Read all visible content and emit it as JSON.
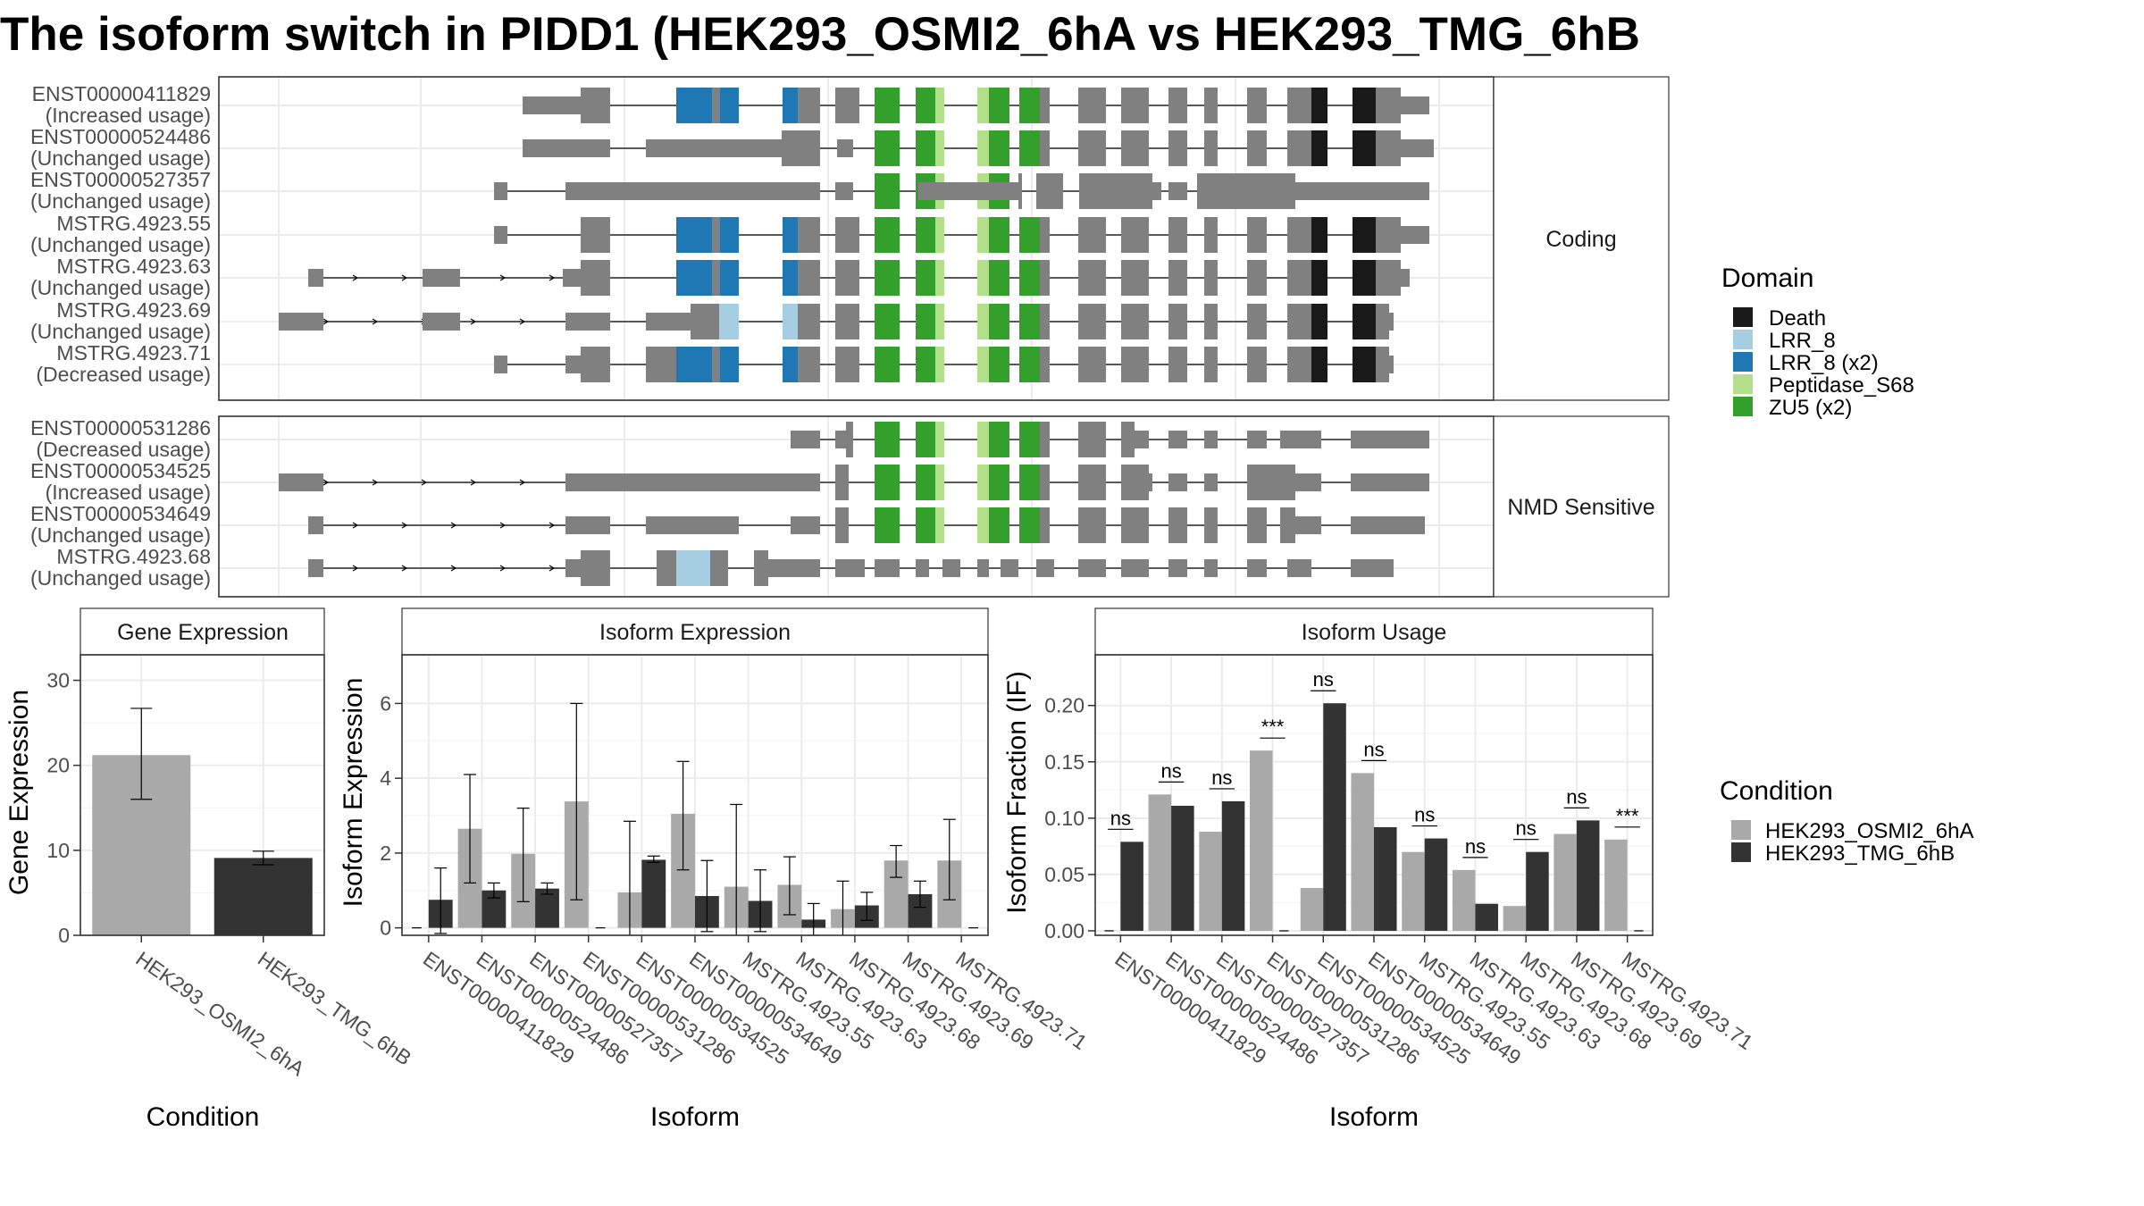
{
  "title": "The isoform switch in PIDD1 (HEK293_OSMI2_6hA vs HEK293_TMG_6hB",
  "colors": {
    "exon": "#808080",
    "Death": "#1a1a1a",
    "LRR_8": "#a6cee3",
    "LRR_8 (x2)": "#1f78b4",
    "Peptidase_S68": "#b2df8a",
    "ZU5 (x2)": "#33a02c",
    "cond1": "#a9a9a9",
    "cond2": "#333333",
    "grid": "#ebebeb",
    "strip": "#ffffff"
  },
  "structure": {
    "facets": [
      {
        "label": "Coding",
        "rows": [
          {
            "name": "ENST00000411829",
            "status": "(Increased usage)"
          },
          {
            "name": "ENST00000524486",
            "status": "(Unchanged usage)"
          },
          {
            "name": "ENST00000527357",
            "status": "(Unchanged usage)"
          },
          {
            "name": "MSTRG.4923.55",
            "status": "(Unchanged usage)"
          },
          {
            "name": "MSTRG.4923.63",
            "status": "(Unchanged usage)"
          },
          {
            "name": "MSTRG.4923.69",
            "status": "(Unchanged usage)"
          },
          {
            "name": "MSTRG.4923.71",
            "status": "(Decreased usage)"
          }
        ]
      },
      {
        "label": "NMD Sensitive",
        "rows": [
          {
            "name": "ENST00000531286",
            "status": "(Decreased usage)"
          },
          {
            "name": "ENST00000534525",
            "status": "(Increased usage)"
          },
          {
            "name": "ENST00000534649",
            "status": "(Unchanged usage)"
          },
          {
            "name": "MSTRG.4923.68",
            "status": "(Unchanged usage)"
          }
        ]
      }
    ]
  },
  "legend_domain": {
    "title": "Domain",
    "items": [
      "Death",
      "LRR_8",
      "LRR_8 (x2)",
      "Peptidase_S68",
      "ZU5 (x2)"
    ]
  },
  "legend_condition": {
    "title": "Condition",
    "items": [
      "HEK293_OSMI2_6hA",
      "HEK293_TMG_6hB"
    ]
  },
  "chart_data": [
    {
      "type": "bar",
      "title": "Gene Expression",
      "xlabel": "Condition",
      "ylabel": "Gene Expression",
      "categories": [
        "HEK293_OSMI2_6hA",
        "HEK293_TMG_6hB"
      ],
      "values": [
        21.2,
        9.1
      ],
      "err_low": [
        16.0,
        8.3
      ],
      "err_high": [
        26.7,
        9.9
      ],
      "ylim": [
        0,
        33
      ],
      "yticks": [
        0,
        10,
        20,
        30
      ]
    },
    {
      "type": "bar",
      "title": "Isoform Expression",
      "xlabel": "Isoform",
      "ylabel": "Isoform Expression",
      "categories": [
        "ENST00000411829",
        "ENST00000524486",
        "ENST00000527357",
        "ENST00000531286",
        "ENST00000534525",
        "ENST00000534649",
        "MSTRG.4923.55",
        "MSTRG.4923.63",
        "MSTRG.4923.68",
        "MSTRG.4923.69",
        "MSTRG.4923.71"
      ],
      "series": [
        {
          "name": "HEK293_OSMI2_6hA",
          "values": [
            0.0,
            2.65,
            1.98,
            3.38,
            0.95,
            3.05,
            1.1,
            1.15,
            0.5,
            1.8,
            1.8
          ],
          "err_low": [
            0.0,
            1.2,
            0.7,
            0.75,
            -0.9,
            1.55,
            -1.1,
            0.35,
            -0.3,
            1.35,
            0.75
          ],
          "err_high": [
            0.0,
            4.1,
            3.2,
            6.0,
            2.85,
            4.45,
            3.3,
            1.9,
            1.25,
            2.2,
            2.9
          ]
        },
        {
          "name": "HEK293_TMG_6hB",
          "values": [
            0.75,
            1.0,
            1.05,
            0.0,
            1.82,
            0.85,
            0.72,
            0.22,
            0.6,
            0.9,
            0.0
          ],
          "err_low": [
            -0.15,
            0.8,
            0.9,
            0.0,
            1.75,
            -0.1,
            -0.1,
            -0.2,
            0.2,
            0.55,
            0.0
          ],
          "err_high": [
            1.6,
            1.2,
            1.2,
            0.0,
            1.92,
            1.8,
            1.55,
            0.65,
            0.95,
            1.25,
            0.0
          ]
        }
      ],
      "ylim": [
        -0.2,
        7.3
      ],
      "yticks": [
        0,
        2,
        4,
        6
      ]
    },
    {
      "type": "bar",
      "title": "Isoform Usage",
      "xlabel": "Isoform",
      "ylabel": "Isoform Fraction (IF)",
      "categories": [
        "ENST00000411829",
        "ENST00000524486",
        "ENST00000527357",
        "ENST00000531286",
        "ENST00000534525",
        "ENST00000534649",
        "MSTRG.4923.55",
        "MSTRG.4923.63",
        "MSTRG.4923.68",
        "MSTRG.4923.69",
        "MSTRG.4923.71"
      ],
      "series": [
        {
          "name": "HEK293_OSMI2_6hA",
          "values": [
            0.0,
            0.121,
            0.088,
            0.16,
            0.038,
            0.14,
            0.07,
            0.054,
            0.022,
            0.086,
            0.081
          ]
        },
        {
          "name": "HEK293_TMG_6hB",
          "values": [
            0.079,
            0.111,
            0.115,
            0.0,
            0.202,
            0.092,
            0.082,
            0.024,
            0.07,
            0.098,
            0.0
          ]
        }
      ],
      "significance": [
        "ns",
        "ns",
        "ns",
        "***",
        "ns",
        "ns",
        "ns",
        "ns",
        "ns",
        "ns",
        "***"
      ],
      "ylim": [
        -0.004,
        0.245
      ],
      "yticks": [
        0.0,
        0.05,
        0.1,
        0.15,
        0.2
      ],
      "ytick_labels": [
        "0.00",
        "0.05",
        "0.10",
        "0.15",
        "0.20"
      ]
    }
  ]
}
